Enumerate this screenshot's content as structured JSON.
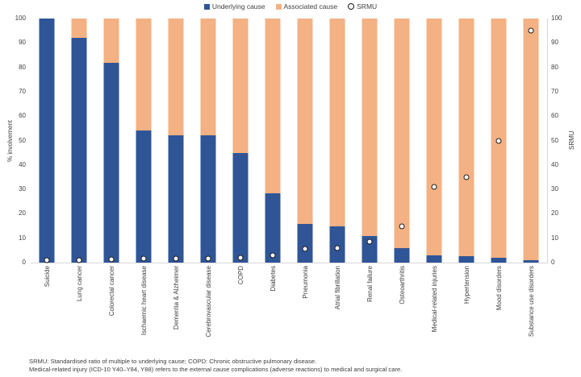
{
  "figure": {
    "footnotes": [
      "SRMU: Standardised ratio of multiple to underlying cause; COPD: Chronic obstructive pulmonary disease.",
      "Medical-related injury (ICD-10 Y40–Y84, Y88) refers to the external cause complications (adverse reactions) to medical and surgical care."
    ]
  },
  "chart_data": {
    "type": "bar",
    "stacked": true,
    "title": "",
    "categories": [
      "Suicide",
      "Lung cancer",
      "Colorectal cancer",
      "Ischaemic heart disease",
      "Dementia & Alzheimer",
      "Cerebrovascular disease",
      "COPD",
      "Diabetes",
      "Pneumonia",
      "Atrial fibrillation",
      "Renal failure",
      "Osteoarthritis",
      "Medical-related injuries",
      "Hypertension",
      "Mood disorders",
      "Substance use disorders"
    ],
    "series": [
      {
        "name": "Underlying cause",
        "values": [
          100,
          92,
          82,
          54,
          52,
          52,
          45,
          28.5,
          16,
          15,
          11,
          6,
          3,
          2.5,
          2,
          1
        ]
      },
      {
        "name": "Associated cause",
        "values": [
          0,
          8,
          18,
          46,
          48,
          48,
          55,
          71.5,
          84,
          85,
          89,
          94,
          97,
          97.5,
          98,
          99
        ]
      }
    ],
    "markers": {
      "name": "SRMU",
      "values": [
        1,
        1,
        1.2,
        1.8,
        1.5,
        1.5,
        2,
        3,
        5.5,
        6,
        8.5,
        15,
        31,
        35,
        50,
        95
      ]
    },
    "ylabel_left": "% involvement",
    "ylabel_right": "SRMU",
    "ylim": [
      0,
      100
    ],
    "tick_step": 10,
    "grid": false,
    "legend_position": "top-center",
    "colors": {
      "underlying": "#2f5597",
      "associated": "#f4b183",
      "marker_fill": "#ffffff",
      "marker_stroke": "#1a1a1a",
      "axis_line": "#d9d9d9",
      "text": "#404040"
    }
  }
}
